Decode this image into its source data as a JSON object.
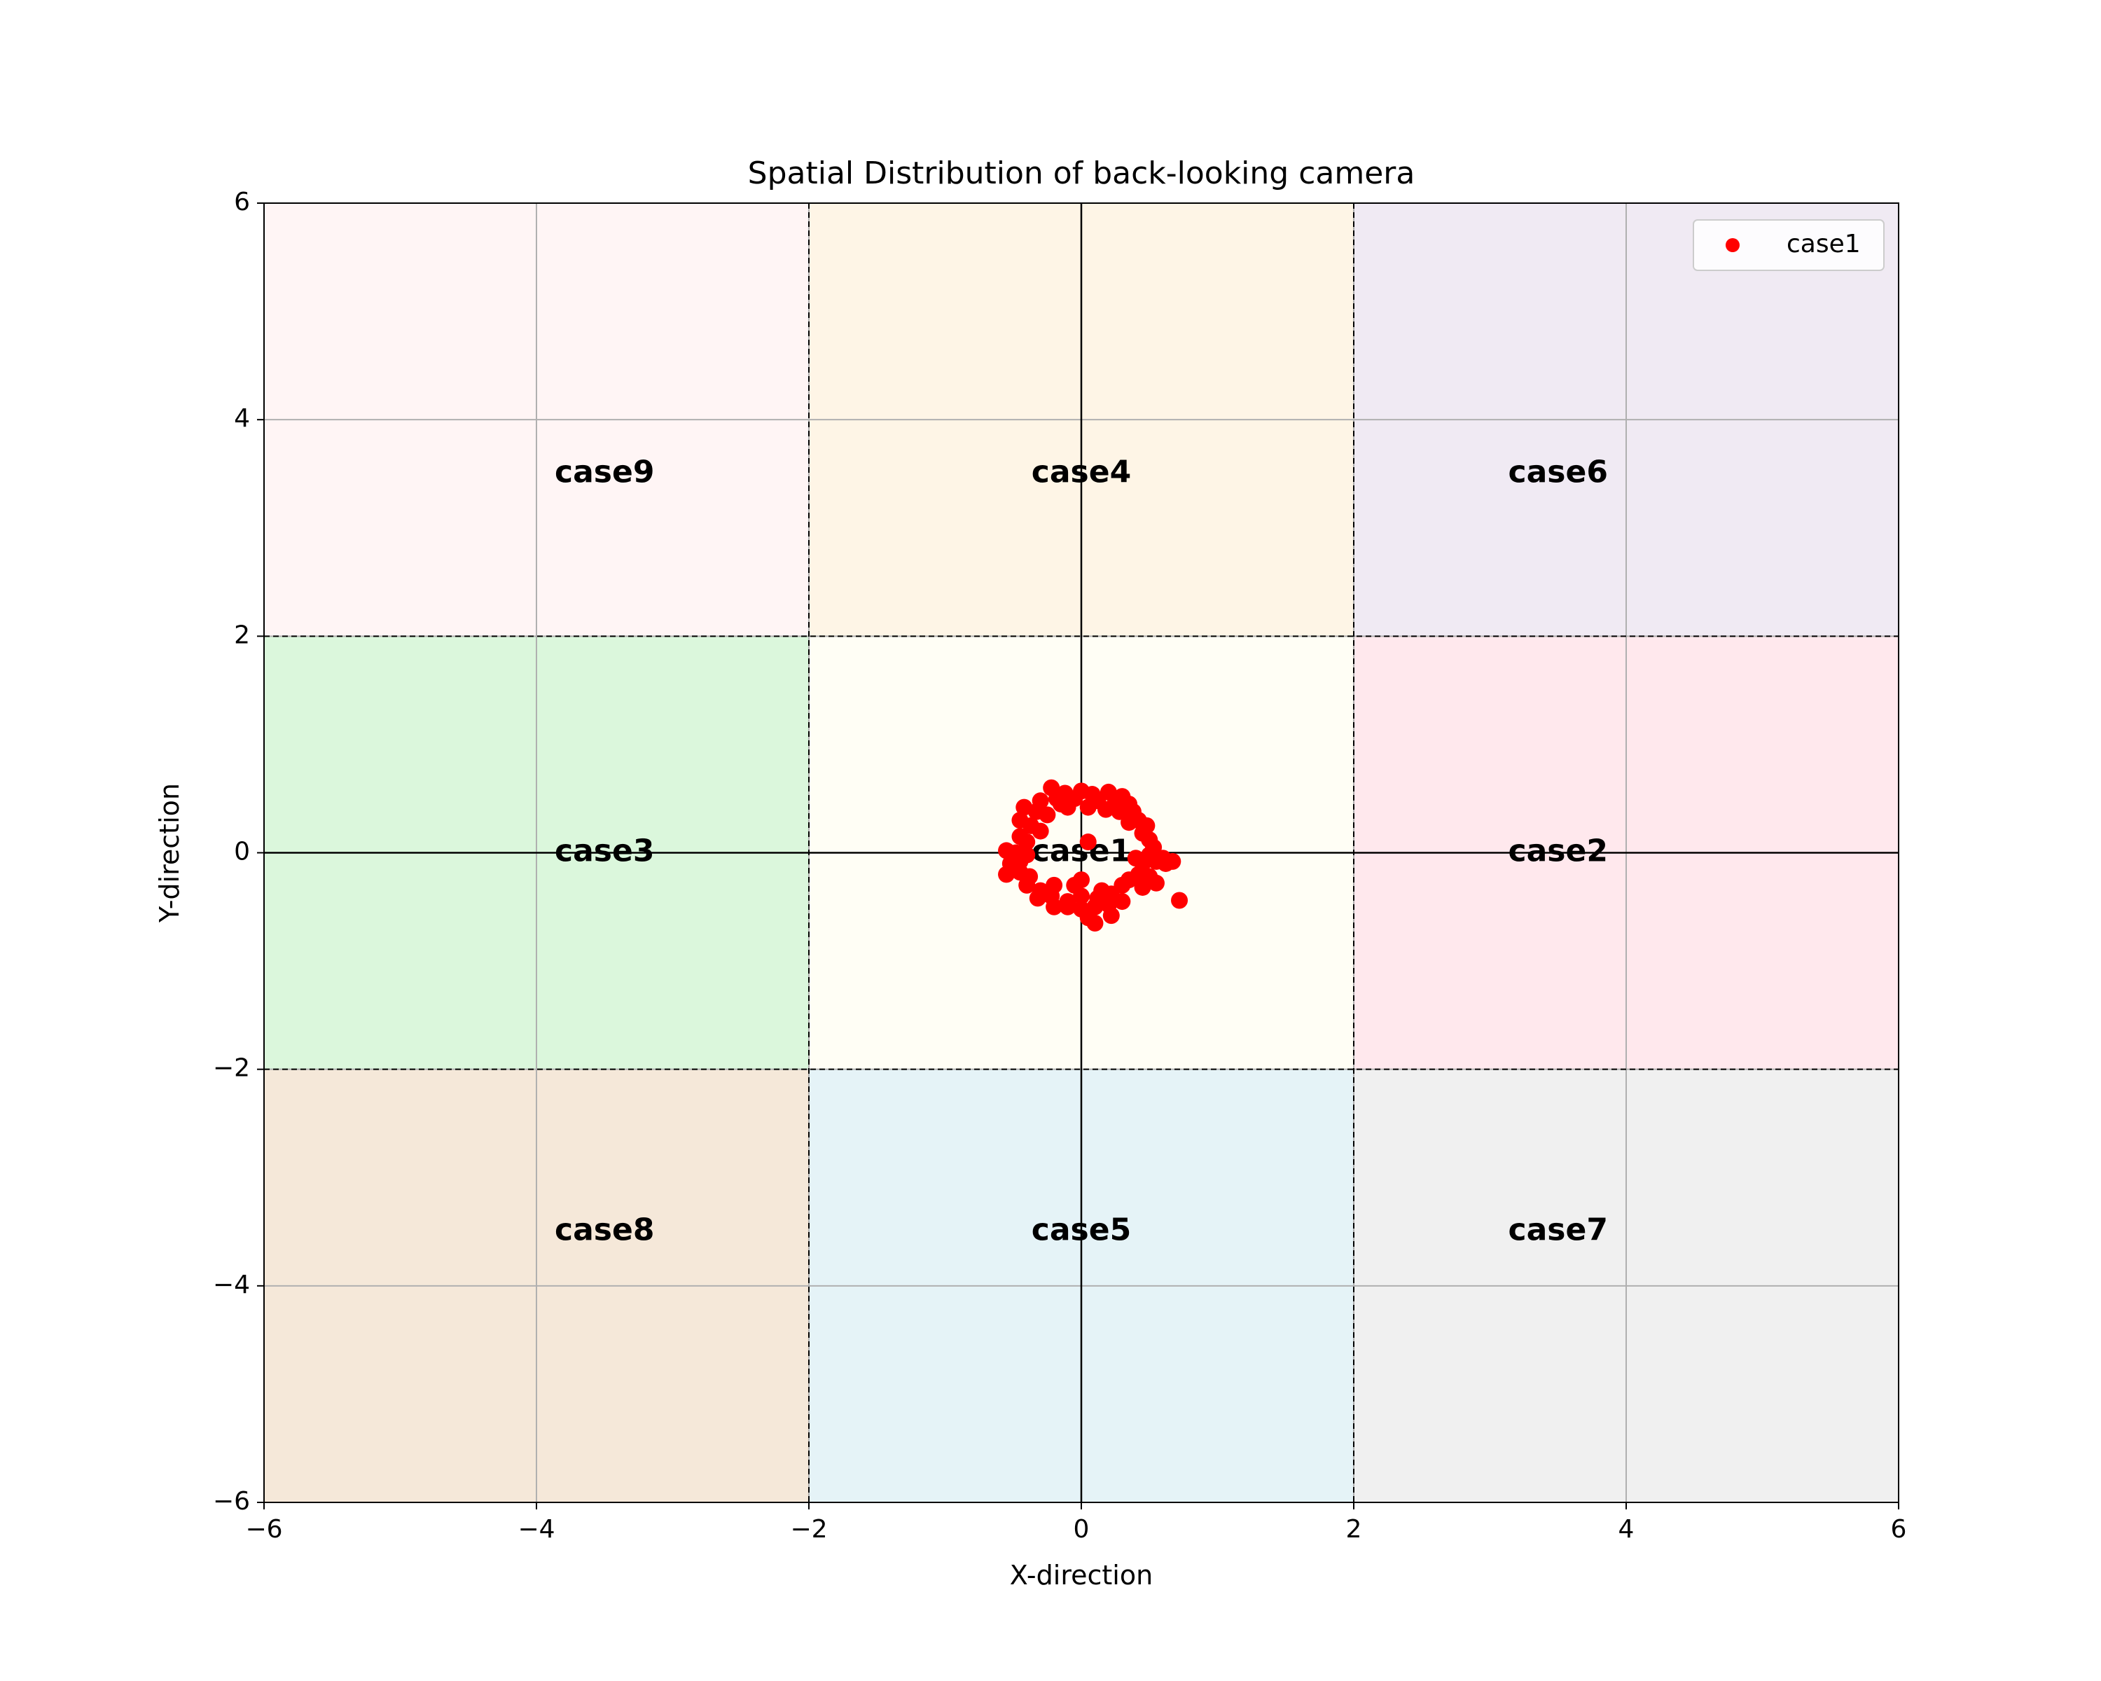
{
  "chart_data": {
    "type": "scatter",
    "title": "Spatial Distribution of back-looking camera",
    "xlabel": "X-direction",
    "ylabel": "Y-direction",
    "xlim": [
      -6,
      6
    ],
    "ylim": [
      -6,
      6
    ],
    "xticks": [
      -6,
      -4,
      -2,
      0,
      2,
      4,
      6
    ],
    "yticks": [
      -6,
      -4,
      -2,
      0,
      2,
      4,
      6
    ],
    "grid": true,
    "legend_position": "top-right",
    "region_boundaries": [
      -2,
      2
    ],
    "regions": [
      {
        "label": "case9",
        "x": [
          -6,
          -2
        ],
        "y": [
          2,
          6
        ],
        "color": "#fff5f5",
        "label_pos": [
          -3.5,
          3.5
        ]
      },
      {
        "label": "case4",
        "x": [
          -2,
          2
        ],
        "y": [
          2,
          6
        ],
        "color": "#fef5e6",
        "label_pos": [
          0,
          3.5
        ]
      },
      {
        "label": "case6",
        "x": [
          2,
          6
        ],
        "y": [
          2,
          6
        ],
        "color": "#f0eaf3",
        "label_pos": [
          3.5,
          3.5
        ]
      },
      {
        "label": "case3",
        "x": [
          -6,
          -2
        ],
        "y": [
          -2,
          2
        ],
        "color": "#dbf7dc",
        "label_pos": [
          -3.5,
          0
        ]
      },
      {
        "label": "case1",
        "x": [
          -2,
          2
        ],
        "y": [
          -2,
          2
        ],
        "color": "#fffef5",
        "label_pos": [
          0,
          0
        ]
      },
      {
        "label": "case2",
        "x": [
          2,
          6
        ],
        "y": [
          -2,
          2
        ],
        "color": "#ffe8ed",
        "label_pos": [
          3.5,
          0
        ]
      },
      {
        "label": "case8",
        "x": [
          -6,
          -2
        ],
        "y": [
          -6,
          -2
        ],
        "color": "#f5e8d9",
        "label_pos": [
          -3.5,
          -3.5
        ]
      },
      {
        "label": "case5",
        "x": [
          -2,
          2
        ],
        "y": [
          -6,
          -2
        ],
        "color": "#e5f3f7",
        "label_pos": [
          0,
          -3.5
        ]
      },
      {
        "label": "case7",
        "x": [
          2,
          6
        ],
        "y": [
          -6,
          -2
        ],
        "color": "#f0f0f0",
        "label_pos": [
          3.5,
          -3.5
        ]
      }
    ],
    "series": [
      {
        "name": "case1",
        "color": "#ff0000",
        "points": [
          [
            -0.22,
            0.6
          ],
          [
            -0.12,
            0.55
          ],
          [
            0.0,
            0.57
          ],
          [
            0.08,
            0.54
          ],
          [
            0.2,
            0.56
          ],
          [
            0.3,
            0.52
          ],
          [
            -0.3,
            0.48
          ],
          [
            -0.18,
            0.5
          ],
          [
            -0.05,
            0.5
          ],
          [
            0.12,
            0.48
          ],
          [
            0.25,
            0.46
          ],
          [
            0.35,
            0.45
          ],
          [
            -0.42,
            0.42
          ],
          [
            -0.33,
            0.38
          ],
          [
            -0.1,
            0.42
          ],
          [
            0.05,
            0.42
          ],
          [
            0.18,
            0.4
          ],
          [
            0.38,
            0.38
          ],
          [
            -0.45,
            0.3
          ],
          [
            -0.37,
            0.25
          ],
          [
            0.42,
            0.3
          ],
          [
            0.48,
            0.25
          ],
          [
            0.35,
            0.28
          ],
          [
            -0.25,
            0.35
          ],
          [
            -0.45,
            0.15
          ],
          [
            -0.4,
            0.1
          ],
          [
            0.45,
            0.18
          ],
          [
            0.5,
            0.12
          ],
          [
            0.53,
            0.05
          ],
          [
            -0.3,
            0.2
          ],
          [
            -0.55,
            0.02
          ],
          [
            -0.48,
            0.0
          ],
          [
            -0.4,
            -0.02
          ],
          [
            0.5,
            -0.02
          ],
          [
            0.55,
            -0.08
          ],
          [
            0.62,
            -0.1
          ],
          [
            0.67,
            -0.08
          ],
          [
            0.6,
            -0.05
          ],
          [
            -0.52,
            -0.1
          ],
          [
            -0.45,
            -0.08
          ],
          [
            0.45,
            -0.1
          ],
          [
            0.4,
            -0.05
          ],
          [
            -0.55,
            -0.2
          ],
          [
            -0.45,
            -0.18
          ],
          [
            -0.38,
            -0.22
          ],
          [
            0.42,
            -0.2
          ],
          [
            0.5,
            -0.22
          ],
          [
            0.55,
            -0.28
          ],
          [
            -0.4,
            -0.3
          ],
          [
            -0.3,
            -0.35
          ],
          [
            -0.2,
            -0.3
          ],
          [
            0.3,
            -0.3
          ],
          [
            0.35,
            -0.25
          ],
          [
            0.45,
            -0.32
          ],
          [
            -0.32,
            -0.42
          ],
          [
            -0.22,
            -0.4
          ],
          [
            -0.1,
            -0.45
          ],
          [
            0.0,
            -0.4
          ],
          [
            0.12,
            -0.42
          ],
          [
            0.22,
            -0.38
          ],
          [
            -0.2,
            -0.5
          ],
          [
            -0.1,
            -0.5
          ],
          [
            0.0,
            -0.52
          ],
          [
            0.1,
            -0.5
          ],
          [
            0.2,
            -0.48
          ],
          [
            0.3,
            -0.45
          ],
          [
            0.05,
            -0.6
          ],
          [
            0.1,
            -0.65
          ],
          [
            0.22,
            -0.58
          ],
          [
            0.72,
            -0.44
          ],
          [
            0.0,
            -0.25
          ],
          [
            0.05,
            0.1
          ],
          [
            -0.05,
            -0.3
          ],
          [
            0.15,
            -0.35
          ],
          [
            -0.15,
            0.45
          ],
          [
            0.28,
            0.38
          ]
        ]
      }
    ]
  }
}
